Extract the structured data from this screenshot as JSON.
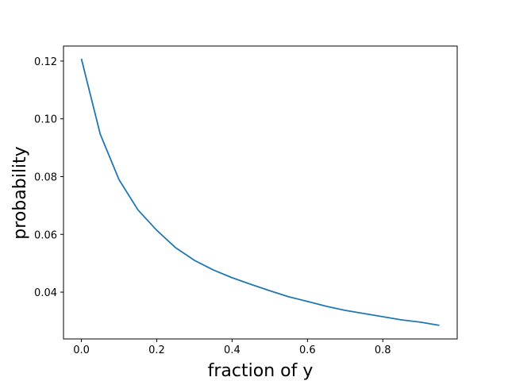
{
  "chart_data": {
    "type": "line",
    "xlabel": "fraction of y",
    "ylabel": "probability",
    "x": [
      0,
      0.05,
      0.1,
      0.15,
      0.2,
      0.25,
      0.3,
      0.35,
      0.4,
      0.45,
      0.5,
      0.55,
      0.6,
      0.65,
      0.7,
      0.75,
      0.8,
      0.85,
      0.9,
      0.95
    ],
    "series": [
      {
        "color": "#1f77b4",
        "values": [
          0.1208,
          0.0947,
          0.0789,
          0.0685,
          0.0614,
          0.0554,
          0.051,
          0.0477,
          0.045,
          0.0427,
          0.0405,
          0.0384,
          0.0368,
          0.0351,
          0.0337,
          0.0326,
          0.0315,
          0.0304,
          0.0296,
          0.0285
        ]
      }
    ],
    "xlim": [
      -0.0475,
      0.9975
    ],
    "xticks": [
      {
        "value": 0,
        "label": "0.0"
      },
      0.2,
      0.4,
      0.6,
      0.8
    ],
    "ylim": [
      0.0238,
      0.1252
    ],
    "yticks": [
      0.04,
      0.06,
      0.08,
      {
        "value": 0.1,
        "label": "0.10"
      },
      0.12
    ]
  }
}
